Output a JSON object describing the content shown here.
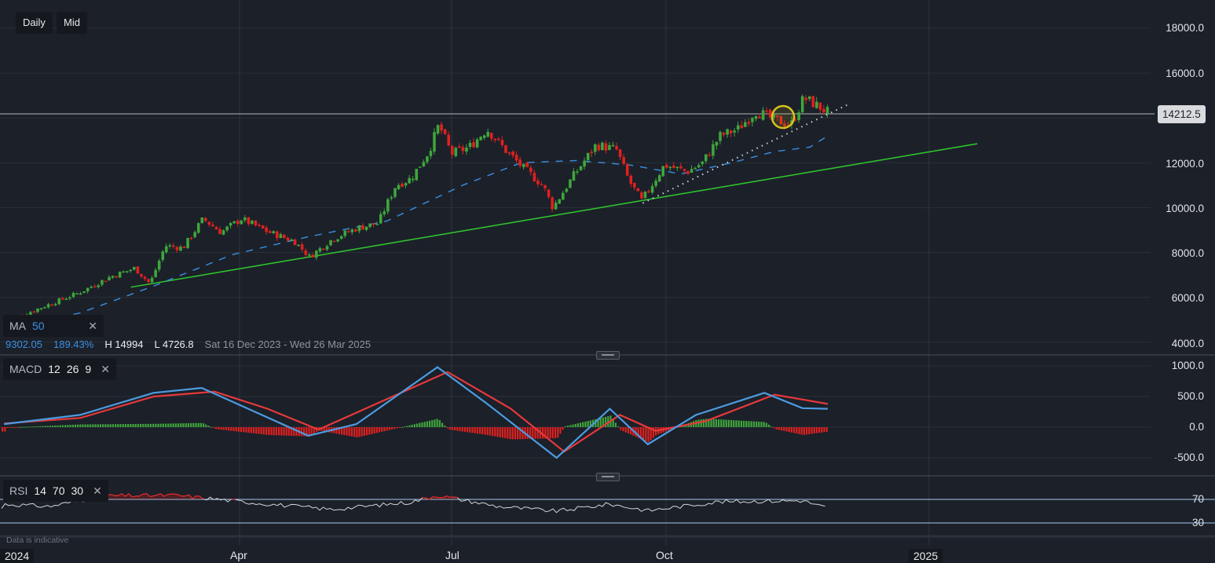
{
  "toolbar": {
    "interval": "Daily",
    "price_type": "Mid"
  },
  "main_axis": {
    "ticks": [
      "18000.0",
      "16000.0",
      "12000.0",
      "10000.0",
      "8000.0",
      "6000.0",
      "4000.0"
    ],
    "current_price": "14212.5"
  },
  "ma_legend": {
    "name": "MA",
    "period": "50",
    "close": "✕"
  },
  "stats": {
    "change": "9302.05",
    "change_pct": "189.43%",
    "high": "H 14994",
    "low": "L 4726.8",
    "range": "Sat 16 Dec 2023 - Wed 26 Mar 2025"
  },
  "macd_legend": {
    "name": "MACD",
    "fast": "12",
    "slow": "26",
    "signal": "9",
    "close": "✕"
  },
  "macd_axis": {
    "ticks": [
      "1000.0",
      "500.0",
      "0.0",
      "-500.0"
    ]
  },
  "rsi_legend": {
    "name": "RSI",
    "period": "14",
    "upper": "70",
    "lower": "30",
    "close": "✕"
  },
  "rsi_axis": {
    "ticks": [
      "70",
      "30"
    ]
  },
  "x_axis": {
    "labels": [
      "2024",
      "Apr",
      "Jul",
      "Oct",
      "2025"
    ]
  },
  "footer": {
    "disclaimer": "Data is indicative"
  },
  "colors": {
    "background": "#1b2029",
    "up": "#3fa63c",
    "down": "#e0201f",
    "ma": "#3a8ad8",
    "trendline": "#2fc12c",
    "macd_line": "#4d9be0",
    "signal_line": "#e6393a",
    "rsi_line": "#d3d6da",
    "rsi_band": "#a9c9ef",
    "highlight": "#d8c21a"
  },
  "chart_data": [
    {
      "type": "candlestick",
      "title": "Daily price (Mid)",
      "ylabel": "Price",
      "ylim": [
        4000,
        18500
      ],
      "x_tick_labels": [
        "2024",
        "Apr",
        "Jul",
        "Oct",
        "2025"
      ],
      "date_range": "Sat 16 Dec 2023 - Wed 26 Mar 2025",
      "high": 14994,
      "low": 4726.8,
      "last": 14212.5,
      "change": 9302.05,
      "change_pct": 189.43,
      "close_path": [
        {
          "x": "2024-01-02",
          "y": 4900
        },
        {
          "x": "2024-01-15",
          "y": 5500
        },
        {
          "x": "2024-01-31",
          "y": 6200
        },
        {
          "x": "2024-02-12",
          "y": 6900
        },
        {
          "x": "2024-02-22",
          "y": 7300
        },
        {
          "x": "2024-02-28",
          "y": 6600
        },
        {
          "x": "2024-03-05",
          "y": 8300
        },
        {
          "x": "2024-03-12",
          "y": 8200
        },
        {
          "x": "2024-03-20",
          "y": 9500
        },
        {
          "x": "2024-03-27",
          "y": 8900
        },
        {
          "x": "2024-04-04",
          "y": 9500
        },
        {
          "x": "2024-04-15",
          "y": 8900
        },
        {
          "x": "2024-04-25",
          "y": 8500
        },
        {
          "x": "2024-05-01",
          "y": 7800
        },
        {
          "x": "2024-05-10",
          "y": 8600
        },
        {
          "x": "2024-05-20",
          "y": 9100
        },
        {
          "x": "2024-05-28",
          "y": 9300
        },
        {
          "x": "2024-06-04",
          "y": 11000
        },
        {
          "x": "2024-06-10",
          "y": 11300
        },
        {
          "x": "2024-06-17",
          "y": 12500
        },
        {
          "x": "2024-06-21",
          "y": 13700
        },
        {
          "x": "2024-06-26",
          "y": 12400
        },
        {
          "x": "2024-07-03",
          "y": 12700
        },
        {
          "x": "2024-07-10",
          "y": 13500
        },
        {
          "x": "2024-07-17",
          "y": 12600
        },
        {
          "x": "2024-07-24",
          "y": 11800
        },
        {
          "x": "2024-08-01",
          "y": 11000
        },
        {
          "x": "2024-08-05",
          "y": 10000
        },
        {
          "x": "2024-08-13",
          "y": 11400
        },
        {
          "x": "2024-08-22",
          "y": 12800
        },
        {
          "x": "2024-08-30",
          "y": 12600
        },
        {
          "x": "2024-09-04",
          "y": 11200
        },
        {
          "x": "2024-09-09",
          "y": 10300
        },
        {
          "x": "2024-09-18",
          "y": 11900
        },
        {
          "x": "2024-09-27",
          "y": 11600
        },
        {
          "x": "2024-10-03",
          "y": 12000
        },
        {
          "x": "2024-10-10",
          "y": 13200
        },
        {
          "x": "2024-10-17",
          "y": 13500
        },
        {
          "x": "2024-10-24",
          "y": 14300
        },
        {
          "x": "2024-11-01",
          "y": 13900
        },
        {
          "x": "2024-11-07",
          "y": 13700
        },
        {
          "x": "2024-11-12",
          "y": 14900
        },
        {
          "x": "2024-11-18",
          "y": 14500
        },
        {
          "x": "2024-11-22",
          "y": 14212.5
        }
      ]
    },
    {
      "type": "line",
      "title": "MA 50",
      "style": "dashed",
      "points": [
        {
          "x": "2024-01-02",
          "y": 4650
        },
        {
          "x": "2024-02-01",
          "y": 5300
        },
        {
          "x": "2024-03-01",
          "y": 6500
        },
        {
          "x": "2024-04-01",
          "y": 7900
        },
        {
          "x": "2024-05-01",
          "y": 8700
        },
        {
          "x": "2024-06-01",
          "y": 9400
        },
        {
          "x": "2024-07-01",
          "y": 11000
        },
        {
          "x": "2024-07-24",
          "y": 12000
        },
        {
          "x": "2024-08-15",
          "y": 12100
        },
        {
          "x": "2024-09-05",
          "y": 11900
        },
        {
          "x": "2024-09-25",
          "y": 11500
        },
        {
          "x": "2024-10-15",
          "y": 12000
        },
        {
          "x": "2024-11-01",
          "y": 12500
        },
        {
          "x": "2024-11-15",
          "y": 12700
        },
        {
          "x": "2024-11-22",
          "y": 13200
        }
      ]
    },
    {
      "type": "line",
      "title": "Ascending support trendline",
      "points": [
        {
          "x": "2024-02-21",
          "y": 6450
        },
        {
          "x": "2025-01-20",
          "y": 12850
        }
      ]
    },
    {
      "type": "line",
      "title": "Short-term dotted trendline",
      "style": "dotted",
      "points": [
        {
          "x": "2024-09-10",
          "y": 10200
        },
        {
          "x": "2024-11-30",
          "y": 14600
        }
      ]
    },
    {
      "type": "line",
      "title": "MACD 12 26 9",
      "ylim": [
        -700,
        1100
      ],
      "series": [
        {
          "name": "MACD",
          "values": [
            {
              "x": "2024-01-02",
              "y": 50
            },
            {
              "x": "2024-02-01",
              "y": 200
            },
            {
              "x": "2024-03-01",
              "y": 560
            },
            {
              "x": "2024-03-20",
              "y": 640
            },
            {
              "x": "2024-04-10",
              "y": 250
            },
            {
              "x": "2024-05-01",
              "y": -140
            },
            {
              "x": "2024-05-20",
              "y": 50
            },
            {
              "x": "2024-06-21",
              "y": 980
            },
            {
              "x": "2024-07-10",
              "y": 400
            },
            {
              "x": "2024-08-07",
              "y": -500
            },
            {
              "x": "2024-08-28",
              "y": 300
            },
            {
              "x": "2024-09-12",
              "y": -280
            },
            {
              "x": "2024-10-01",
              "y": 200
            },
            {
              "x": "2024-10-28",
              "y": 560
            },
            {
              "x": "2024-11-12",
              "y": 310
            },
            {
              "x": "2024-11-22",
              "y": 300
            }
          ]
        },
        {
          "name": "Signal",
          "values": [
            {
              "x": "2024-01-02",
              "y": 60
            },
            {
              "x": "2024-02-01",
              "y": 150
            },
            {
              "x": "2024-03-01",
              "y": 500
            },
            {
              "x": "2024-03-25",
              "y": 580
            },
            {
              "x": "2024-04-15",
              "y": 300
            },
            {
              "x": "2024-05-05",
              "y": -40
            },
            {
              "x": "2024-06-25",
              "y": 900
            },
            {
              "x": "2024-07-20",
              "y": 300
            },
            {
              "x": "2024-08-10",
              "y": -400
            },
            {
              "x": "2024-09-01",
              "y": 200
            },
            {
              "x": "2024-09-15",
              "y": -60
            },
            {
              "x": "2024-10-05",
              "y": 100
            },
            {
              "x": "2024-11-01",
              "y": 530
            },
            {
              "x": "2024-11-22",
              "y": 380
            }
          ]
        },
        {
          "name": "Histogram",
          "values": "green above zero Jan–Apr, red May, green Jun, red Jul–Aug, green late Aug, red Sep, green Oct, red Nov"
        }
      ]
    },
    {
      "type": "line",
      "title": "RSI 14 70 30",
      "ylim": [
        20,
        85
      ],
      "levels": [
        70,
        30
      ],
      "points": [
        {
          "x": "2024-01-02",
          "y": 62
        },
        {
          "x": "2024-01-20",
          "y": 58
        },
        {
          "x": "2024-02-10",
          "y": 76
        },
        {
          "x": "2024-03-10",
          "y": 77
        },
        {
          "x": "2024-04-10",
          "y": 64
        },
        {
          "x": "2024-05-10",
          "y": 53
        },
        {
          "x": "2024-06-10",
          "y": 65
        },
        {
          "x": "2024-06-21",
          "y": 77
        },
        {
          "x": "2024-07-15",
          "y": 58
        },
        {
          "x": "2024-08-07",
          "y": 50
        },
        {
          "x": "2024-08-28",
          "y": 62
        },
        {
          "x": "2024-09-12",
          "y": 51
        },
        {
          "x": "2024-10-10",
          "y": 66
        },
        {
          "x": "2024-11-12",
          "y": 68
        },
        {
          "x": "2024-11-22",
          "y": 55
        }
      ]
    }
  ]
}
